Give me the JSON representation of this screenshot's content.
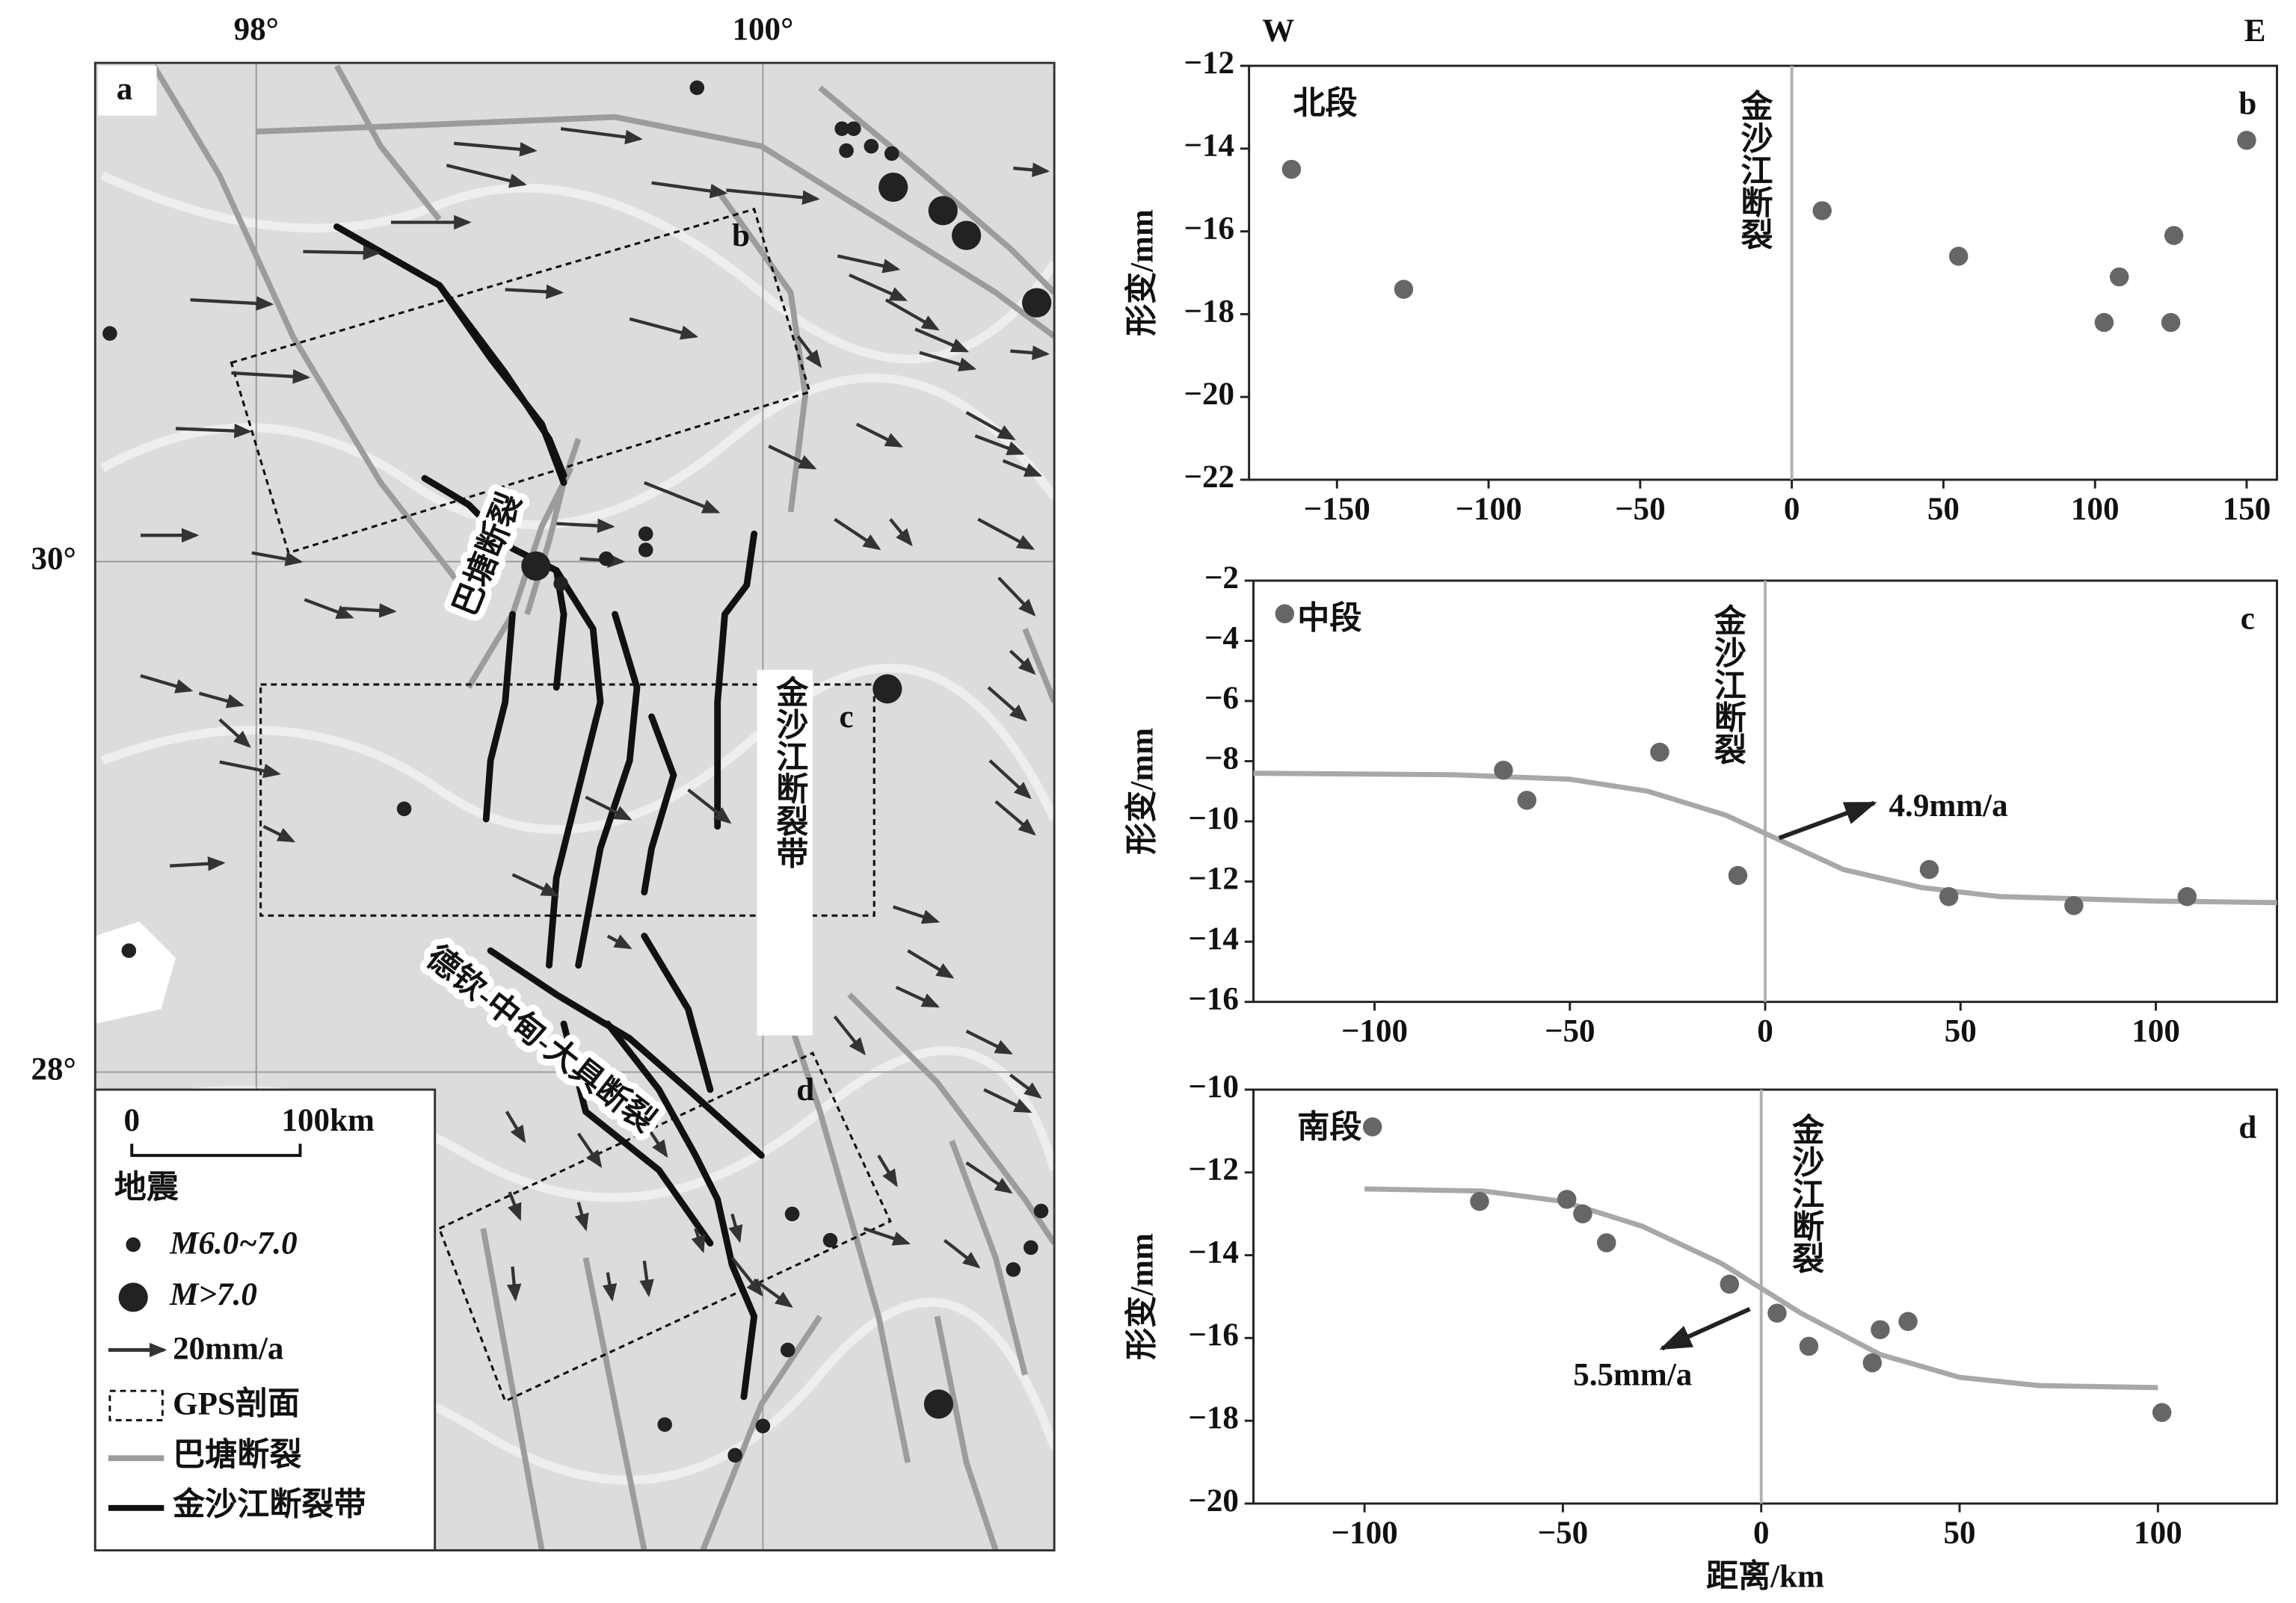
{
  "map": {
    "panel_label": "a",
    "lon_labels": [
      "98°",
      "100°"
    ],
    "lat_labels": [
      "30°",
      "28°"
    ],
    "profile_labels": [
      "b",
      "c",
      "d"
    ],
    "fault_labels": [
      "巴塘断裂",
      "金沙江断裂带",
      "德钦-中甸-大具断裂"
    ],
    "legend": {
      "scale_zero": 0,
      "scale_length": "100km",
      "earthquake_title": "地震",
      "items": [
        "M6.0~7.0",
        "M>7.0",
        "20mm/a",
        "GPS剖面",
        "巴塘断裂",
        "金沙江断裂带"
      ]
    }
  },
  "chart_data": [
    {
      "type": "scatter",
      "panel_label": "b",
      "section": "北段",
      "fault_label": "金沙江断裂",
      "west_label": "W",
      "east_label": "E",
      "ylabel": "形变/mm",
      "color": "#666666",
      "fault_line_x": 0,
      "x": [
        -165,
        -128,
        10,
        55,
        103,
        108,
        125,
        126,
        150
      ],
      "y": [
        -14.5,
        -17.4,
        -15.5,
        -16.6,
        -18.2,
        -17.1,
        -18.2,
        -16.1,
        -13.8
      ],
      "xlim": [
        -179,
        160
      ],
      "ylim": [
        -22,
        -12
      ],
      "xticks": [
        {
          "value": -150,
          "label": "−150"
        },
        {
          "value": -100,
          "label": "−100"
        },
        {
          "value": -50,
          "label": "−50"
        },
        0,
        50,
        100,
        150
      ],
      "yticks": [
        {
          "value": -22,
          "label": "−22"
        },
        {
          "value": -20,
          "label": "−20"
        },
        {
          "value": -18,
          "label": "−18"
        },
        {
          "value": -16,
          "label": "−16"
        },
        {
          "value": -14,
          "label": "−14"
        },
        {
          "value": -12,
          "label": "−12"
        }
      ]
    },
    {
      "type": "scatter",
      "panel_label": "c",
      "section": "中段",
      "fault_label": "金沙江断裂",
      "annotation": "4.9mm/a",
      "ylabel": "形变/mm",
      "color": "#666666",
      "fault_line_x": 0,
      "x": [
        -123,
        -67,
        -61,
        -27,
        -7,
        42,
        47,
        79,
        108
      ],
      "y": [
        -3.1,
        -8.3,
        -9.3,
        -7.7,
        -11.8,
        -11.6,
        -12.5,
        -12.8,
        -12.5
      ],
      "fit": {
        "color": "#a8a8a8",
        "x": [
          -131,
          -80,
          -50,
          -30,
          -10,
          0,
          10,
          20,
          40,
          60,
          100,
          131
        ],
        "y": [
          -8.4,
          -8.45,
          -8.6,
          -9.0,
          -9.8,
          -10.4,
          -11.0,
          -11.6,
          -12.2,
          -12.5,
          -12.65,
          -12.7
        ]
      },
      "xlim": [
        -131,
        131
      ],
      "ylim": [
        -16,
        -2
      ],
      "xticks": [
        {
          "value": -100,
          "label": "−100"
        },
        {
          "value": -50,
          "label": "−50"
        },
        0,
        50,
        100
      ],
      "yticks": [
        {
          "value": -16,
          "label": "−16"
        },
        {
          "value": -14,
          "label": "−14"
        },
        {
          "value": -12,
          "label": "−12"
        },
        {
          "value": -10,
          "label": "−10"
        },
        {
          "value": -8,
          "label": "−8"
        },
        {
          "value": -6,
          "label": "−6"
        },
        {
          "value": -4,
          "label": "−4"
        },
        {
          "value": -2,
          "label": "−2"
        }
      ]
    },
    {
      "type": "scatter",
      "panel_label": "d",
      "section": "南段",
      "fault_label": "金沙江断裂",
      "annotation": "5.5mm/a",
      "ylabel": "形变/mm",
      "xlabel": "距离/km",
      "color": "#666666",
      "fault_line_x": 0,
      "x": [
        -98,
        -71,
        -49,
        -45,
        -39,
        -8,
        4,
        12,
        28,
        30,
        37,
        101
      ],
      "y": [
        -10.9,
        -12.7,
        -12.65,
        -13.0,
        -13.7,
        -14.7,
        -15.4,
        -16.2,
        -16.6,
        -15.8,
        -15.6,
        -17.8
      ],
      "fit": {
        "color": "#a8a8a8",
        "x": [
          -100,
          -70,
          -50,
          -30,
          -10,
          0,
          10,
          30,
          50,
          70,
          100
        ],
        "y": [
          -12.4,
          -12.45,
          -12.7,
          -13.3,
          -14.2,
          -14.8,
          -15.4,
          -16.4,
          -16.95,
          -17.15,
          -17.2
        ]
      },
      "xlim": [
        -128,
        130
      ],
      "ylim": [
        -20,
        -10
      ],
      "xticks": [
        {
          "value": -100,
          "label": "−100"
        },
        {
          "value": -50,
          "label": "−50"
        },
        0,
        50,
        100
      ],
      "yticks": [
        {
          "value": -20,
          "label": "−20"
        },
        {
          "value": -18,
          "label": "−18"
        },
        {
          "value": -16,
          "label": "−16"
        },
        {
          "value": -14,
          "label": "−14"
        },
        {
          "value": -12,
          "label": "−12"
        },
        {
          "value": -10,
          "label": "−10"
        }
      ]
    }
  ]
}
